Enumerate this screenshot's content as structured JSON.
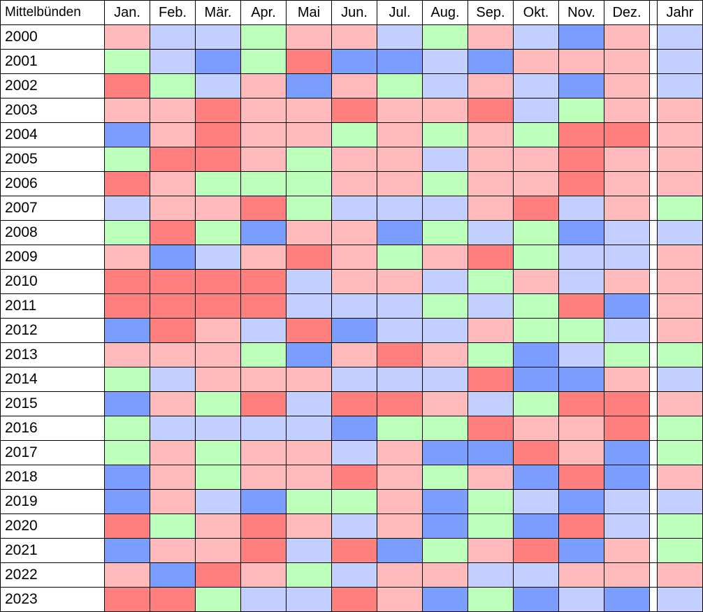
{
  "chart_data": {
    "type": "heatmap",
    "title": "Mittelbünden",
    "columns": [
      "Jan.",
      "Feb.",
      "Mär.",
      "Apr.",
      "Mai",
      "Jun.",
      "Jul.",
      "Aug.",
      "Sep.",
      "Okt.",
      "Nov.",
      "Dez."
    ],
    "annual_column": "Jahr",
    "rows": [
      "2000",
      "2001",
      "2002",
      "2003",
      "2004",
      "2005",
      "2006",
      "2007",
      "2008",
      "2009",
      "2010",
      "2011",
      "2012",
      "2013",
      "2014",
      "2015",
      "2016",
      "2017",
      "2018",
      "2019",
      "2020",
      "2021",
      "2022",
      "2023"
    ],
    "categories_legend": {
      "D": "dark red",
      "R": "light red",
      "G": "green",
      "B": "light blue",
      "K": "dark blue"
    },
    "colors": {
      "D": "#ff7f7f",
      "R": "#ffbbbb",
      "G": "#bbffbb",
      "B": "#c3cfff",
      "K": "#7b9dff"
    },
    "cells": [
      [
        "R",
        "B",
        "B",
        "G",
        "R",
        "R",
        "B",
        "G",
        "R",
        "B",
        "K",
        "R",
        "B"
      ],
      [
        "G",
        "B",
        "K",
        "G",
        "D",
        "K",
        "K",
        "B",
        "K",
        "R",
        "R",
        "R",
        "B"
      ],
      [
        "D",
        "G",
        "B",
        "R",
        "K",
        "R",
        "G",
        "B",
        "R",
        "B",
        "K",
        "R",
        "B"
      ],
      [
        "R",
        "R",
        "D",
        "R",
        "R",
        "D",
        "R",
        "R",
        "D",
        "B",
        "G",
        "R",
        "R"
      ],
      [
        "K",
        "R",
        "D",
        "R",
        "R",
        "G",
        "R",
        "G",
        "R",
        "G",
        "D",
        "D",
        "R"
      ],
      [
        "G",
        "D",
        "D",
        "R",
        "G",
        "R",
        "R",
        "B",
        "R",
        "R",
        "D",
        "R",
        "R"
      ],
      [
        "D",
        "R",
        "G",
        "G",
        "G",
        "R",
        "R",
        "G",
        "R",
        "R",
        "D",
        "R",
        "R"
      ],
      [
        "B",
        "R",
        "R",
        "D",
        "G",
        "B",
        "B",
        "B",
        "R",
        "D",
        "B",
        "R",
        "G"
      ],
      [
        "G",
        "D",
        "G",
        "K",
        "R",
        "R",
        "K",
        "G",
        "B",
        "G",
        "K",
        "B",
        "B"
      ],
      [
        "R",
        "K",
        "B",
        "R",
        "D",
        "R",
        "G",
        "R",
        "D",
        "G",
        "B",
        "B",
        "R"
      ],
      [
        "D",
        "D",
        "D",
        "D",
        "B",
        "R",
        "R",
        "B",
        "G",
        "R",
        "B",
        "R",
        "R"
      ],
      [
        "D",
        "D",
        "D",
        "D",
        "B",
        "B",
        "B",
        "G",
        "B",
        "G",
        "D",
        "K",
        "R"
      ],
      [
        "K",
        "D",
        "R",
        "B",
        "D",
        "K",
        "B",
        "B",
        "R",
        "G",
        "G",
        "B",
        "R"
      ],
      [
        "R",
        "R",
        "R",
        "G",
        "K",
        "R",
        "D",
        "R",
        "G",
        "K",
        "B",
        "G",
        "G"
      ],
      [
        "G",
        "B",
        "R",
        "R",
        "R",
        "B",
        "B",
        "B",
        "D",
        "K",
        "K",
        "R",
        "B"
      ],
      [
        "K",
        "R",
        "G",
        "D",
        "B",
        "D",
        "D",
        "R",
        "B",
        "G",
        "D",
        "D",
        "R"
      ],
      [
        "G",
        "B",
        "B",
        "B",
        "B",
        "K",
        "G",
        "G",
        "D",
        "R",
        "R",
        "D",
        "G"
      ],
      [
        "G",
        "R",
        "G",
        "R",
        "R",
        "B",
        "R",
        "K",
        "K",
        "D",
        "R",
        "K",
        "G"
      ],
      [
        "K",
        "R",
        "G",
        "R",
        "R",
        "D",
        "R",
        "G",
        "R",
        "K",
        "D",
        "K",
        "R"
      ],
      [
        "K",
        "R",
        "B",
        "K",
        "G",
        "G",
        "R",
        "K",
        "G",
        "B",
        "K",
        "B",
        "B"
      ],
      [
        "D",
        "G",
        "R",
        "D",
        "R",
        "B",
        "R",
        "K",
        "G",
        "K",
        "D",
        "B",
        "G"
      ],
      [
        "K",
        "R",
        "R",
        "D",
        "B",
        "D",
        "K",
        "G",
        "R",
        "D",
        "K",
        "R",
        "G"
      ],
      [
        "R",
        "K",
        "D",
        "R",
        "G",
        "B",
        "R",
        "R",
        "B",
        "B",
        "R",
        "R",
        "R"
      ],
      [
        "D",
        "D",
        "G",
        "B",
        "B",
        "D",
        "R",
        "K",
        "G",
        "K",
        "B",
        "K",
        "B"
      ]
    ]
  }
}
